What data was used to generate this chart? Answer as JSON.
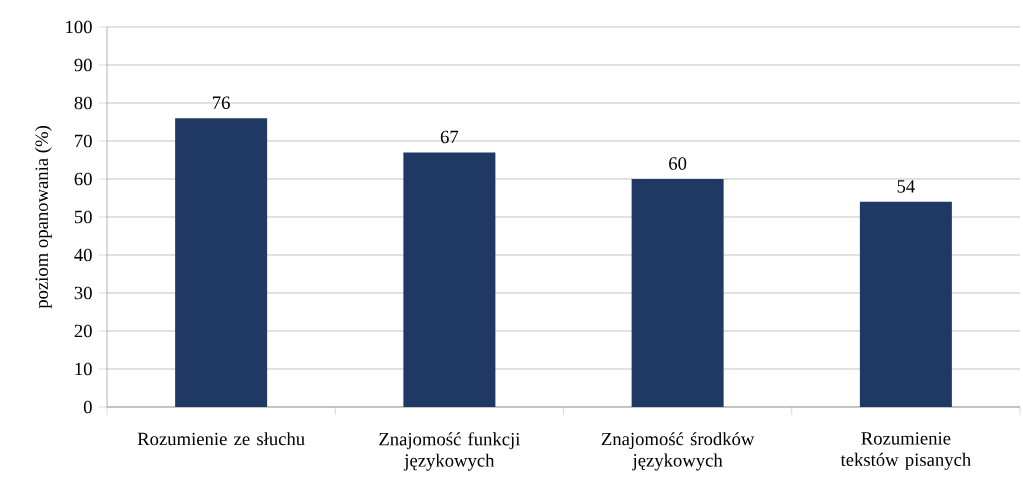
{
  "chart_data": {
    "type": "bar",
    "categories": [
      "Rozumienie ze słuchu",
      "Znajomość funkcji językowych",
      "Znajomość środków językowych",
      "Rozumienie tekstów pisanych"
    ],
    "values": [
      76,
      67,
      60,
      54
    ],
    "color": "#1f3864",
    "ylabel": "poziom opanowania (%)",
    "ylim": [
      0,
      100
    ],
    "yticks": [
      0,
      10,
      20,
      30,
      40,
      50,
      60,
      70,
      80,
      90,
      100
    ],
    "grid": "y",
    "data_labels": true
  }
}
